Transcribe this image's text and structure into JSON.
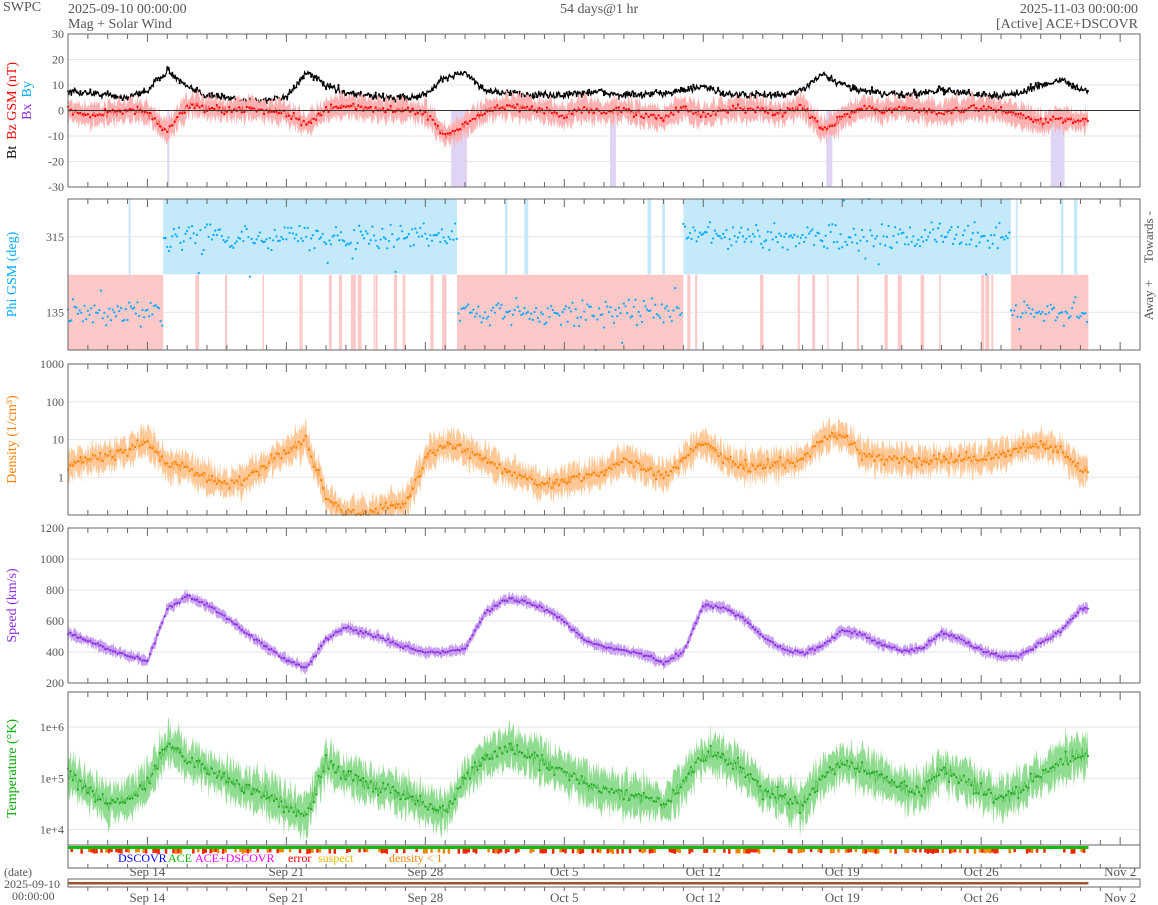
{
  "header": {
    "agency": "SWPC",
    "start": "2025-09-10 00:00:00",
    "subtitle": "Mag + Solar Wind",
    "span": "54 days@1 hr",
    "end": "2025-11-03 00:00:00",
    "source": "[Active] ACE+DSCOVR"
  },
  "footer": {
    "date_label": "(date)",
    "date_start": "2025-09-10",
    "time_start": "00:00:00"
  },
  "legend": [
    {
      "label": "DSCOVR",
      "color": "#0000ff"
    },
    {
      "label": "ACE",
      "color": "#00bb00"
    },
    {
      "label": "ACE+DSCOVR",
      "color": "#ff00ff"
    },
    {
      "label": "error",
      "color": "#ff0000"
    },
    {
      "label": "suspect",
      "color": "#e6b800"
    },
    {
      "label": "density < 1",
      "color": "#ff8000"
    }
  ],
  "chart_data": {
    "type": "line",
    "x_range_days": [
      0,
      54
    ],
    "data_end_day": 51.4,
    "x_ticks": [
      {
        "day": 4,
        "label": "Sep 14"
      },
      {
        "day": 11,
        "label": "Sep 21"
      },
      {
        "day": 18,
        "label": "Sep 28"
      },
      {
        "day": 25,
        "label": "Oct 5"
      },
      {
        "day": 32,
        "label": "Oct 12"
      },
      {
        "day": 39,
        "label": "Oct 19"
      },
      {
        "day": 46,
        "label": "Oct 26"
      },
      {
        "day": 53,
        "label": "Nov 2"
      }
    ],
    "panels": [
      {
        "id": "mag",
        "ylabels": [
          {
            "text": "Bt",
            "color": "#000000"
          },
          {
            "text": "Bz GSM (nT)",
            "color": "#ff0000"
          },
          {
            "text": "Bx",
            "color": "#8a2be2"
          },
          {
            "text": "By",
            "color": "#00aaff"
          }
        ],
        "scale": "linear",
        "ylim": [
          -30,
          30
        ],
        "yticks": [
          "30",
          "20",
          "10",
          "0",
          "-10",
          "-20",
          "-30"
        ],
        "series": [
          {
            "name": "Bt",
            "color": "#000000",
            "daily": [
              7,
              7,
              6,
              5,
              8,
              16,
              9,
              6,
              5,
              4,
              4,
              5,
              15,
              10,
              7,
              6,
              5,
              5,
              6,
              13,
              15,
              8,
              7,
              6,
              6,
              6,
              7,
              7,
              6,
              6,
              7,
              8,
              9,
              7,
              6,
              6,
              6,
              8,
              14,
              10,
              8,
              7,
              6,
              7,
              8,
              7,
              6,
              6,
              7,
              10,
              12,
              8
            ]
          },
          {
            "name": "Bz",
            "color": "#ff0000",
            "band": "#ffb0b0",
            "daily": [
              0,
              -2,
              -1,
              0,
              -1,
              -8,
              2,
              1,
              0,
              1,
              0,
              -1,
              -5,
              0,
              2,
              1,
              0,
              0,
              -1,
              -10,
              -6,
              0,
              2,
              1,
              0,
              -2,
              1,
              -1,
              0,
              -2,
              -3,
              1,
              -2,
              0,
              1,
              0,
              -1,
              2,
              -8,
              -3,
              1,
              0,
              1,
              0,
              -1,
              0,
              1,
              0,
              -2,
              -5,
              -3,
              -4
            ]
          }
        ]
      },
      {
        "id": "phi",
        "ylabels": [
          {
            "text": "Phi GSM (deg)",
            "color": "#00aaff"
          }
        ],
        "right_labels": [
          "Towards -",
          "Away +"
        ],
        "scale": "linear",
        "ylim": [
          45,
          405
        ],
        "yticks": [
          "315",
          "135"
        ],
        "sectors": [
          {
            "from": 0,
            "to": 4.8,
            "sector": "away"
          },
          {
            "from": 4.8,
            "to": 19.6,
            "sector": "towards"
          },
          {
            "from": 19.6,
            "to": 31.0,
            "sector": "away"
          },
          {
            "from": 31.0,
            "to": 47.5,
            "sector": "towards"
          },
          {
            "from": 47.5,
            "to": 51.4,
            "sector": "away"
          }
        ],
        "sector_colors": {
          "towards": "#c4e9fb",
          "away": "#fcc8c8"
        },
        "series": [
          {
            "name": "Phi",
            "color": "#00aaff",
            "towards_mean": 315,
            "away_mean": 135
          }
        ]
      },
      {
        "id": "density",
        "ylabels": [
          {
            "text": "Density (1/cm³)",
            "color": "#ff8000"
          }
        ],
        "scale": "log",
        "ylim": [
          0.1,
          1000
        ],
        "yticks": [
          "1000",
          "100",
          "10",
          "1"
        ],
        "series": [
          {
            "name": "Density",
            "color": "#ff8000",
            "band": "#ffc896",
            "daily": [
              2,
              3,
              3.5,
              5,
              10,
              2,
              2,
              1,
              0.6,
              1,
              2,
              5,
              10,
              0.3,
              0.1,
              0.1,
              0.15,
              0.2,
              3,
              8,
              5,
              3,
              1.5,
              1,
              0.6,
              0.8,
              1,
              1.5,
              3,
              2,
              1,
              3,
              8,
              3,
              2,
              2,
              2.5,
              3,
              10,
              15,
              4,
              3,
              3,
              2.5,
              3,
              3,
              3,
              4,
              6,
              7,
              5,
              1.5
            ]
          }
        ]
      },
      {
        "id": "speed",
        "ylabels": [
          {
            "text": "Speed (km/s)",
            "color": "#8a2be2"
          }
        ],
        "scale": "linear",
        "ylim": [
          200,
          1200
        ],
        "yticks": [
          "1200",
          "1000",
          "800",
          "600",
          "400",
          "200"
        ],
        "series": [
          {
            "name": "Speed",
            "color": "#8a2be2",
            "band": "#c8a0f0",
            "daily": [
              520,
              470,
              420,
              380,
              340,
              680,
              760,
              700,
              620,
              520,
              430,
              350,
              300,
              480,
              560,
              520,
              480,
              430,
              400,
              400,
              420,
              650,
              740,
              730,
              680,
              600,
              480,
              430,
              410,
              380,
              330,
              400,
              700,
              690,
              620,
              500,
              420,
              390,
              440,
              540,
              510,
              450,
              410,
              420,
              520,
              480,
              410,
              370,
              380,
              460,
              530,
              680
            ]
          }
        ]
      },
      {
        "id": "temperature",
        "ylabels": [
          {
            "text": "Temperature (°K)",
            "color": "#00aa00"
          }
        ],
        "scale": "log",
        "ylim": [
          5000,
          4800000
        ],
        "yticks": [
          "1e+6",
          "1e+5",
          "1e+4"
        ],
        "series": [
          {
            "name": "Temperature",
            "color": "#22aa22",
            "band": "#90dc90",
            "daily": [
              120000,
              60000,
              30000,
              40000,
              80000,
              400000,
              250000,
              150000,
              100000,
              60000,
              50000,
              30000,
              20000,
              200000,
              120000,
              80000,
              60000,
              50000,
              30000,
              20000,
              100000,
              250000,
              400000,
              300000,
              200000,
              120000,
              80000,
              60000,
              50000,
              40000,
              30000,
              80000,
              300000,
              250000,
              150000,
              60000,
              40000,
              30000,
              100000,
              200000,
              150000,
              100000,
              70000,
              50000,
              150000,
              100000,
              60000,
              40000,
              60000,
              120000,
              200000,
              300000
            ]
          }
        ]
      }
    ]
  }
}
